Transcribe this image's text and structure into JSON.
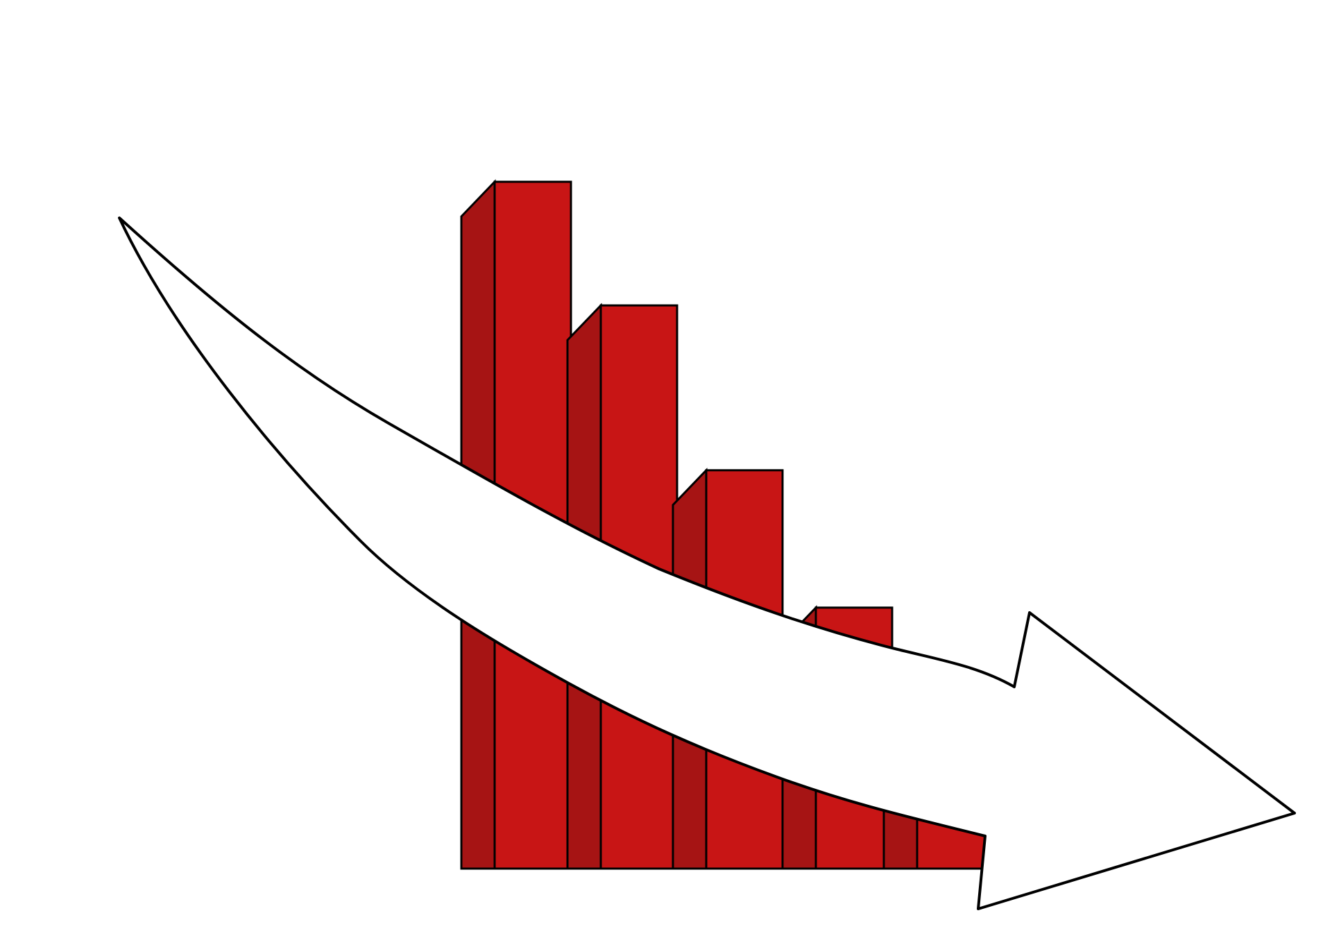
{
  "illustration": {
    "description_type": "decline-clipart",
    "bars": [
      {
        "level": 1.0
      },
      {
        "level": 0.82
      },
      {
        "level": 0.58
      },
      {
        "level": 0.38
      },
      {
        "level": 0.2
      }
    ],
    "colors": {
      "background": "#ffffff",
      "bar_front": "#c81515",
      "bar_side": "#a61414",
      "outline": "#000000",
      "arrow_fill": "#ffffff"
    },
    "icon": "downward-trend-arrow-icon"
  }
}
